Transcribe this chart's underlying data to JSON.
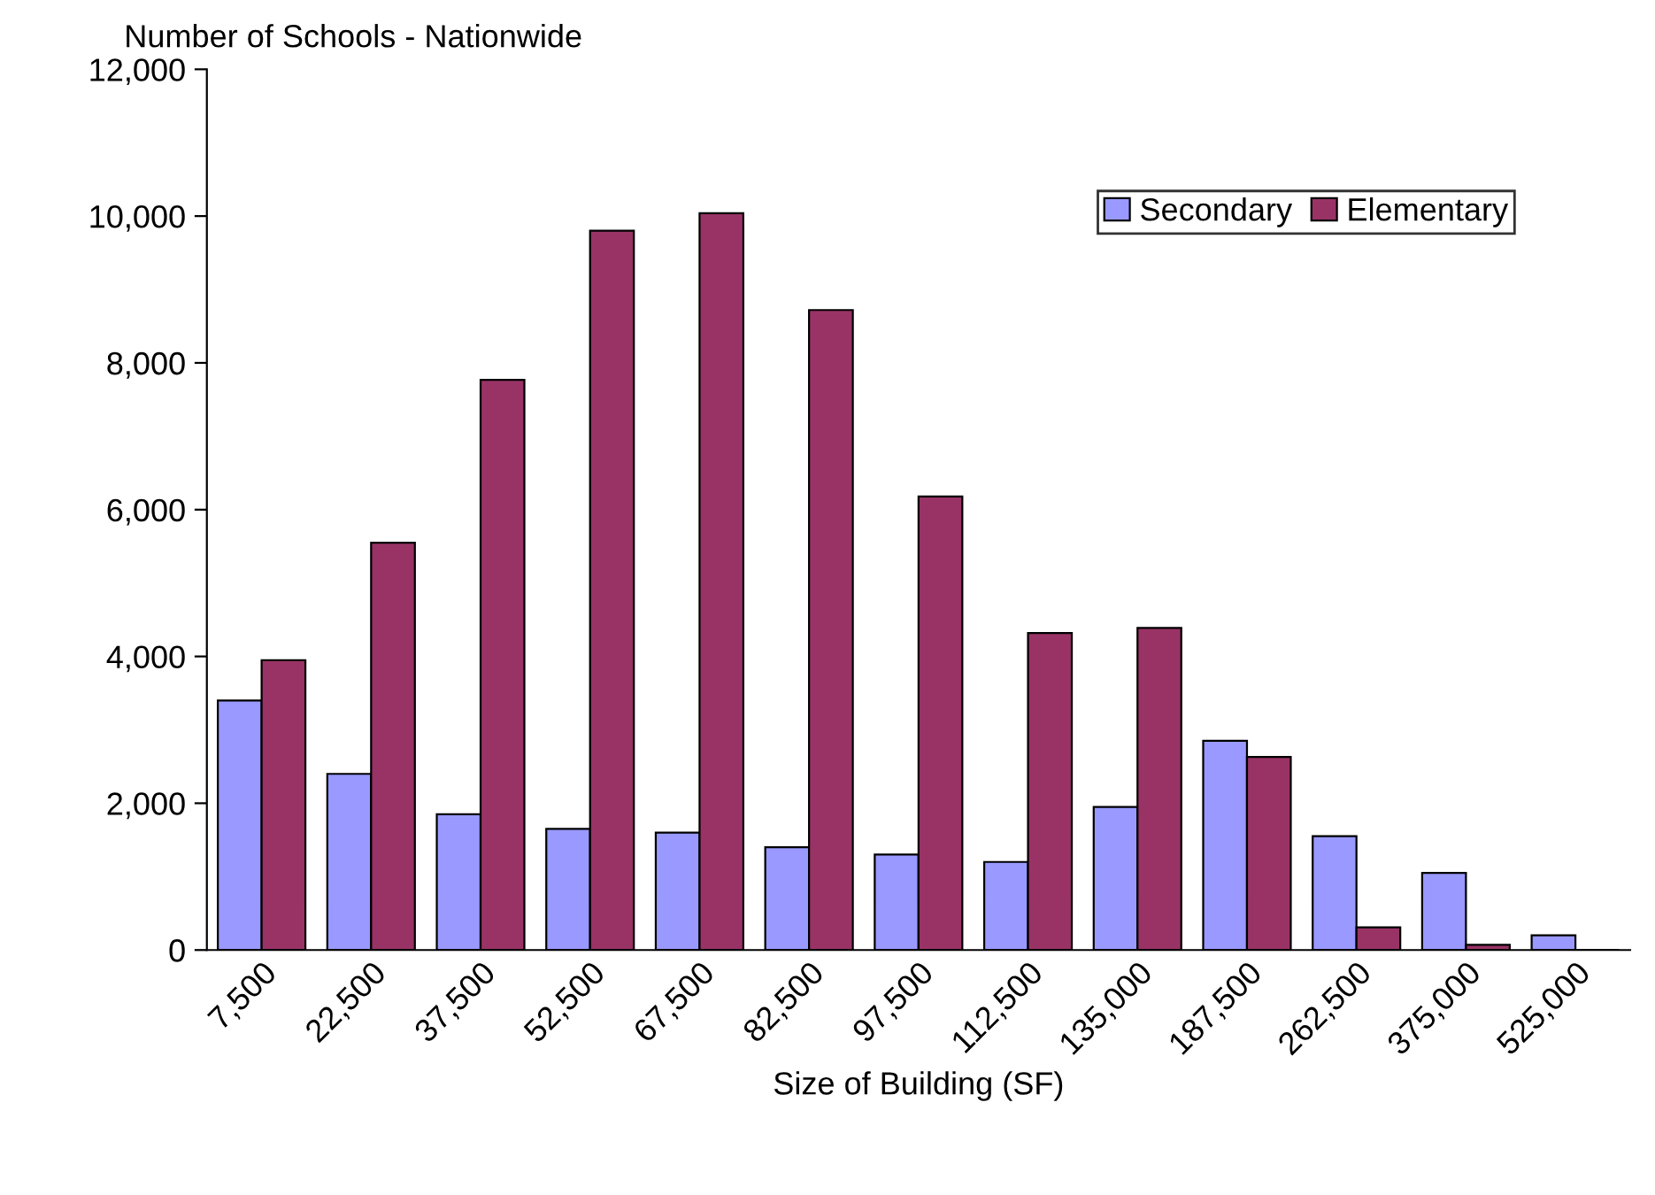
{
  "chart_data": {
    "type": "bar",
    "title": "Number of Schools - Nationwide",
    "xlabel": "Size of Building (SF)",
    "categories": [
      "7,500",
      "22,500",
      "37,500",
      "52,500",
      "67,500",
      "82,500",
      "97,500",
      "112,500",
      "135,000",
      "187,500",
      "262,500",
      "375,000",
      "525,000"
    ],
    "series": [
      {
        "name": "Secondary",
        "color": "#9999ff",
        "values": [
          3400,
          2400,
          1850,
          1650,
          1600,
          1400,
          1300,
          1200,
          1950,
          2850,
          1550,
          1050,
          200
        ]
      },
      {
        "name": "Elementary",
        "color": "#993366",
        "values": [
          3950,
          5550,
          7770,
          9800,
          10040,
          8720,
          6180,
          4320,
          4390,
          2630,
          310,
          70,
          0
        ]
      }
    ],
    "ylim": [
      0,
      12000
    ],
    "yticks": [
      {
        "value": 0,
        "label": "0"
      },
      {
        "value": 2000,
        "label": "2,000"
      },
      {
        "value": 4000,
        "label": "4,000"
      },
      {
        "value": 6000,
        "label": "6,000"
      },
      {
        "value": 8000,
        "label": "8,000"
      },
      {
        "value": 10000,
        "label": "10,000"
      },
      {
        "value": 12000,
        "label": "12,000"
      }
    ],
    "legend": "top right",
    "grid": false
  }
}
